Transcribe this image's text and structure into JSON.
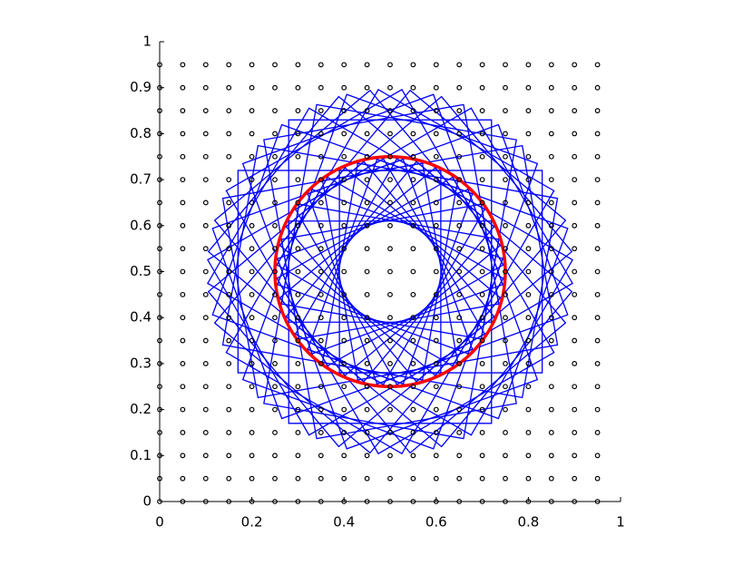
{
  "chart_data": {
    "type": "scatter",
    "xlim": [
      0,
      1
    ],
    "ylim": [
      0,
      1
    ],
    "xticks": [
      0,
      0.2,
      0.4,
      0.6,
      0.8,
      1
    ],
    "yticks": [
      0,
      0.1,
      0.2,
      0.3,
      0.4,
      0.5,
      0.6,
      0.7,
      0.8,
      0.9,
      1
    ],
    "points": {
      "color": "#000000",
      "grid_x": [
        0,
        0.05,
        0.1,
        0.15,
        0.2,
        0.25,
        0.3,
        0.35,
        0.4,
        0.45,
        0.5,
        0.55,
        0.6,
        0.65,
        0.7,
        0.75,
        0.8,
        0.85,
        0.9,
        0.95
      ],
      "grid_y": [
        0,
        0.05,
        0.1,
        0.15,
        0.2,
        0.25,
        0.3,
        0.35,
        0.4,
        0.45,
        0.5,
        0.55,
        0.6,
        0.65,
        0.7,
        0.75,
        0.8,
        0.85,
        0.9,
        0.95
      ]
    },
    "squares": {
      "color": "#0000ff",
      "half_side": 0.22,
      "center_x": 0.5,
      "center_y": 0.5,
      "cx": [
        0.61,
        0.6083,
        0.6034,
        0.5953,
        0.5843,
        0.5707,
        0.555,
        0.5376,
        0.5191,
        0.5,
        0.4809,
        0.4624,
        0.445,
        0.4293,
        0.4157,
        0.4047,
        0.3966,
        0.3917,
        0.39,
        0.3917,
        0.3966,
        0.4047,
        0.4157,
        0.4293,
        0.445,
        0.4624,
        0.4809,
        0.5,
        0.5191,
        0.5376,
        0.555,
        0.5707,
        0.5843,
        0.5953,
        0.6034,
        0.6083
      ],
      "cy": [
        0.5,
        0.5191,
        0.5376,
        0.555,
        0.5707,
        0.5843,
        0.5953,
        0.6034,
        0.6083,
        0.61,
        0.6083,
        0.6034,
        0.5953,
        0.5843,
        0.5707,
        0.555,
        0.5376,
        0.5191,
        0.5,
        0.4809,
        0.4624,
        0.445,
        0.4293,
        0.4157,
        0.4047,
        0.3966,
        0.3917,
        0.39,
        0.3917,
        0.3966,
        0.4047,
        0.4157,
        0.4293,
        0.445,
        0.4624,
        0.4809
      ]
    },
    "circle": {
      "color": "#ff0000",
      "cx": 0.5,
      "cy": 0.5,
      "r": 0.25
    }
  }
}
